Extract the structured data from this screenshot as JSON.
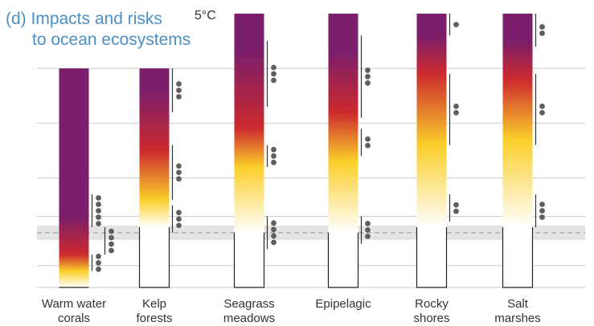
{
  "chart_data": {
    "type": "bar",
    "title_lines": [
      "(d) Impacts and risks",
      "to ocean ecosystems"
    ],
    "y_tick_label": "5°C",
    "ylim": [
      0,
      5
    ],
    "reference_level": 1.0,
    "colors": {
      "white": "#ffffff",
      "yellow": "#fbcf2a",
      "red": "#cc2a2e",
      "purple": "#7b1e6b",
      "grid": "#cccccc",
      "band": "#e4e4e4",
      "dots": "#5f5f5f",
      "title": "#4a90c8"
    },
    "categories": [
      {
        "label_lines": [
          "Warm water",
          "corals"
        ],
        "bar_top": 4.0,
        "stops": [
          {
            "t": 0.0,
            "color": "white"
          },
          {
            "t": 0.3,
            "color": "yellow"
          },
          {
            "t": 0.6,
            "color": "red"
          },
          {
            "t": 1.3,
            "color": "purple"
          }
        ],
        "confidence": [
          {
            "from": 0.3,
            "to": 0.6,
            "dots": 3
          },
          {
            "from": 0.6,
            "to": 1.1,
            "dots": 4,
            "offset": 1
          },
          {
            "from": 1.1,
            "to": 1.7,
            "dots": 5
          }
        ]
      },
      {
        "label_lines": [
          "Kelp",
          "forests"
        ],
        "bar_top": 4.0,
        "stops": [
          {
            "t": 1.1,
            "color": "white"
          },
          {
            "t": 1.6,
            "color": "yellow"
          },
          {
            "t": 2.5,
            "color": "red"
          },
          {
            "t": 3.6,
            "color": "purple"
          }
        ],
        "confidence": [
          {
            "from": 1.0,
            "to": 1.5,
            "dots": 3
          },
          {
            "from": 1.6,
            "to": 2.6,
            "dots": 3
          },
          {
            "from": 3.2,
            "to": 4.0,
            "dots": 3
          }
        ]
      },
      {
        "label_lines": [
          "Seagrass",
          "meadows"
        ],
        "bar_top": 5.0,
        "stops": [
          {
            "t": 1.0,
            "color": "white"
          },
          {
            "t": 2.2,
            "color": "yellow"
          },
          {
            "t": 2.9,
            "color": "red"
          },
          {
            "t": 4.3,
            "color": "purple"
          }
        ],
        "confidence": [
          {
            "from": 0.7,
            "to": 1.3,
            "dots": 4
          },
          {
            "from": 2.2,
            "to": 2.6,
            "dots": 3
          },
          {
            "from": 3.3,
            "to": 4.5,
            "dots": 3
          }
        ]
      },
      {
        "label_lines": [
          "Epipelagic"
        ],
        "bar_top": 5.0,
        "stops": [
          {
            "t": 1.0,
            "color": "white"
          },
          {
            "t": 2.3,
            "color": "yellow"
          },
          {
            "t": 3.2,
            "color": "red"
          },
          {
            "t": 4.3,
            "color": "purple"
          }
        ],
        "confidence": [
          {
            "from": 0.8,
            "to": 1.3,
            "dots": 3
          },
          {
            "from": 2.4,
            "to": 2.9,
            "dots": 2
          },
          {
            "from": 3.1,
            "to": 4.6,
            "dots": 3
          }
        ]
      },
      {
        "label_lines": [
          "Rocky",
          "shores"
        ],
        "bar_top": 5.0,
        "stops": [
          {
            "t": 1.1,
            "color": "white"
          },
          {
            "t": 2.6,
            "color": "yellow"
          },
          {
            "t": 3.9,
            "color": "red"
          },
          {
            "t": 4.6,
            "color": "purple"
          }
        ],
        "confidence": [
          {
            "from": 1.2,
            "to": 1.7,
            "dots": 2
          },
          {
            "from": 2.6,
            "to": 3.9,
            "dots": 2
          },
          {
            "from": 4.6,
            "to": 5.0,
            "dots": 1
          }
        ]
      },
      {
        "label_lines": [
          "Salt",
          "marshes"
        ],
        "bar_top": 5.0,
        "stops": [
          {
            "t": 1.1,
            "color": "white"
          },
          {
            "t": 2.7,
            "color": "yellow"
          },
          {
            "t": 3.8,
            "color": "red"
          },
          {
            "t": 4.5,
            "color": "purple"
          }
        ],
        "confidence": [
          {
            "from": 1.1,
            "to": 1.7,
            "dots": 3
          },
          {
            "from": 2.6,
            "to": 3.9,
            "dots": 2
          },
          {
            "from": 4.4,
            "to": 5.0,
            "dots": 2
          }
        ]
      }
    ]
  }
}
